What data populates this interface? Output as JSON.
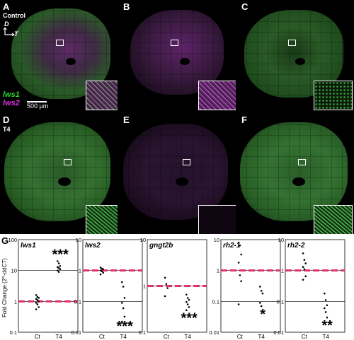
{
  "panels": {
    "A": "A",
    "B": "B",
    "C": "C",
    "D": "D",
    "E": "E",
    "F": "F",
    "G": "G"
  },
  "conditions": {
    "control": "Control",
    "t4": "T4"
  },
  "orientation": {
    "dorsal": "D",
    "temporal": "T"
  },
  "legend": {
    "green": "lws1",
    "magenta": "lws2"
  },
  "scale_bar": "500 µm",
  "colors": {
    "green": "#2bd62b",
    "magenta": "#d22fd2",
    "reference_line": "#e0306e"
  },
  "chart_data": [
    {
      "type": "scatter",
      "title": "lws1",
      "categories": [
        "Ct",
        "T4"
      ],
      "yscale": "log",
      "ylim": [
        0.1,
        100
      ],
      "yticks": [
        "0.1",
        "1",
        "10",
        "100"
      ],
      "ylabel": "Fold Change (2^-ddCT)",
      "reference": 1,
      "series": [
        {
          "category": "Ct",
          "values": [
            1.6,
            1.4,
            1.3,
            1.2,
            1.1,
            1.0,
            0.9,
            0.8,
            0.65,
            0.55
          ]
        },
        {
          "category": "T4",
          "values": [
            20,
            17,
            14,
            13,
            12,
            11,
            10,
            9
          ]
        }
      ],
      "significance": "***"
    },
    {
      "type": "scatter",
      "title": "lws2",
      "categories": [
        "Ct",
        "T4"
      ],
      "yscale": "log",
      "ylim": [
        0.01,
        10
      ],
      "yticks": [
        "0.01",
        "0.1",
        "1",
        "10"
      ],
      "reference": 1,
      "series": [
        {
          "category": "Ct",
          "values": [
            1.25,
            1.15,
            1.1,
            1.0,
            0.95,
            0.85,
            0.75
          ]
        },
        {
          "category": "T4",
          "values": [
            0.42,
            0.3,
            0.13,
            0.09,
            0.06,
            0.032,
            0.022
          ]
        }
      ],
      "significance": "***"
    },
    {
      "type": "scatter",
      "title": "gngt2b",
      "categories": [
        "Ct",
        "T4"
      ],
      "yscale": "log",
      "ylim": [
        0.1,
        10
      ],
      "yticks": [
        "0.1",
        "1",
        "10"
      ],
      "reference": 1,
      "series": [
        {
          "category": "Ct",
          "values": [
            1.5,
            1.1,
            0.9,
            0.6
          ]
        },
        {
          "category": "T4",
          "values": [
            0.65,
            0.55,
            0.5,
            0.45,
            0.4,
            0.35,
            0.3
          ]
        }
      ],
      "significance": "***"
    },
    {
      "type": "scatter",
      "title": "rh2-1",
      "categories": [
        "Ct",
        "T4"
      ],
      "yscale": "log",
      "ylim": [
        0.01,
        10
      ],
      "yticks": [
        "0.01",
        "0.1",
        "1",
        "10"
      ],
      "reference": 1,
      "series": [
        {
          "category": "Ct",
          "values": [
            8,
            6.5,
            3.3,
            1.8,
            0.7,
            0.45,
            0.08
          ]
        },
        {
          "category": "T4",
          "values": [
            0.3,
            0.22,
            0.18,
            0.09,
            0.07
          ]
        }
      ],
      "significance": "*"
    },
    {
      "type": "scatter",
      "title": "rh2-2",
      "categories": [
        "Ct",
        "T4"
      ],
      "yscale": "log",
      "ylim": [
        0.01,
        10
      ],
      "yticks": [
        "0.01",
        "0.1",
        "1",
        "10"
      ],
      "reference": 1,
      "series": [
        {
          "category": "Ct",
          "values": [
            3.6,
            2.2,
            1.7,
            1.3,
            1.1,
            0.65,
            0.5
          ]
        },
        {
          "category": "T4",
          "values": [
            0.18,
            0.11,
            0.075,
            0.06,
            0.045,
            0.03
          ]
        }
      ],
      "significance": "**"
    }
  ]
}
